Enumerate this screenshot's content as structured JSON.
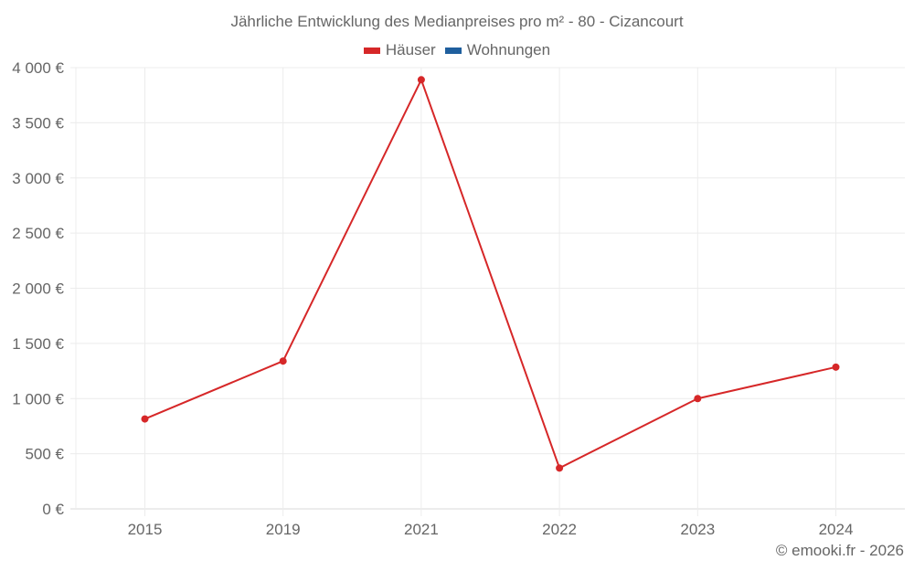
{
  "chart_data": {
    "type": "line",
    "title": "Jährliche Entwicklung des Medianpreises pro m² - 80 - Cizancourt",
    "categories": [
      "2015",
      "2019",
      "2021",
      "2022",
      "2023",
      "2024"
    ],
    "series": [
      {
        "name": "Häuser",
        "color": "#d62728",
        "values": [
          815,
          1340,
          3890,
          370,
          1000,
          1285
        ]
      },
      {
        "name": "Wohnungen",
        "color": "#1f5f9e",
        "values": []
      }
    ],
    "xlabel": "",
    "ylabel": "",
    "ylim": [
      0,
      4000
    ],
    "yticks": [
      0,
      500,
      1000,
      1500,
      2000,
      2500,
      3000,
      3500,
      4000
    ],
    "ytick_labels": [
      "0 €",
      "500 €",
      "1 000 €",
      "1 500 €",
      "2 000 €",
      "2 500 €",
      "3 000 €",
      "3 500 €",
      "4 000 €"
    ],
    "grid": true,
    "legend_position": "top"
  },
  "title": "Jährliche Entwicklung des Medianpreises pro m² - 80 - Cizancourt",
  "legend": [
    {
      "label": "Häuser",
      "color": "#d62728"
    },
    {
      "label": "Wohnungen",
      "color": "#1f5f9e"
    }
  ],
  "credit": "© emooki.fr - 2026"
}
